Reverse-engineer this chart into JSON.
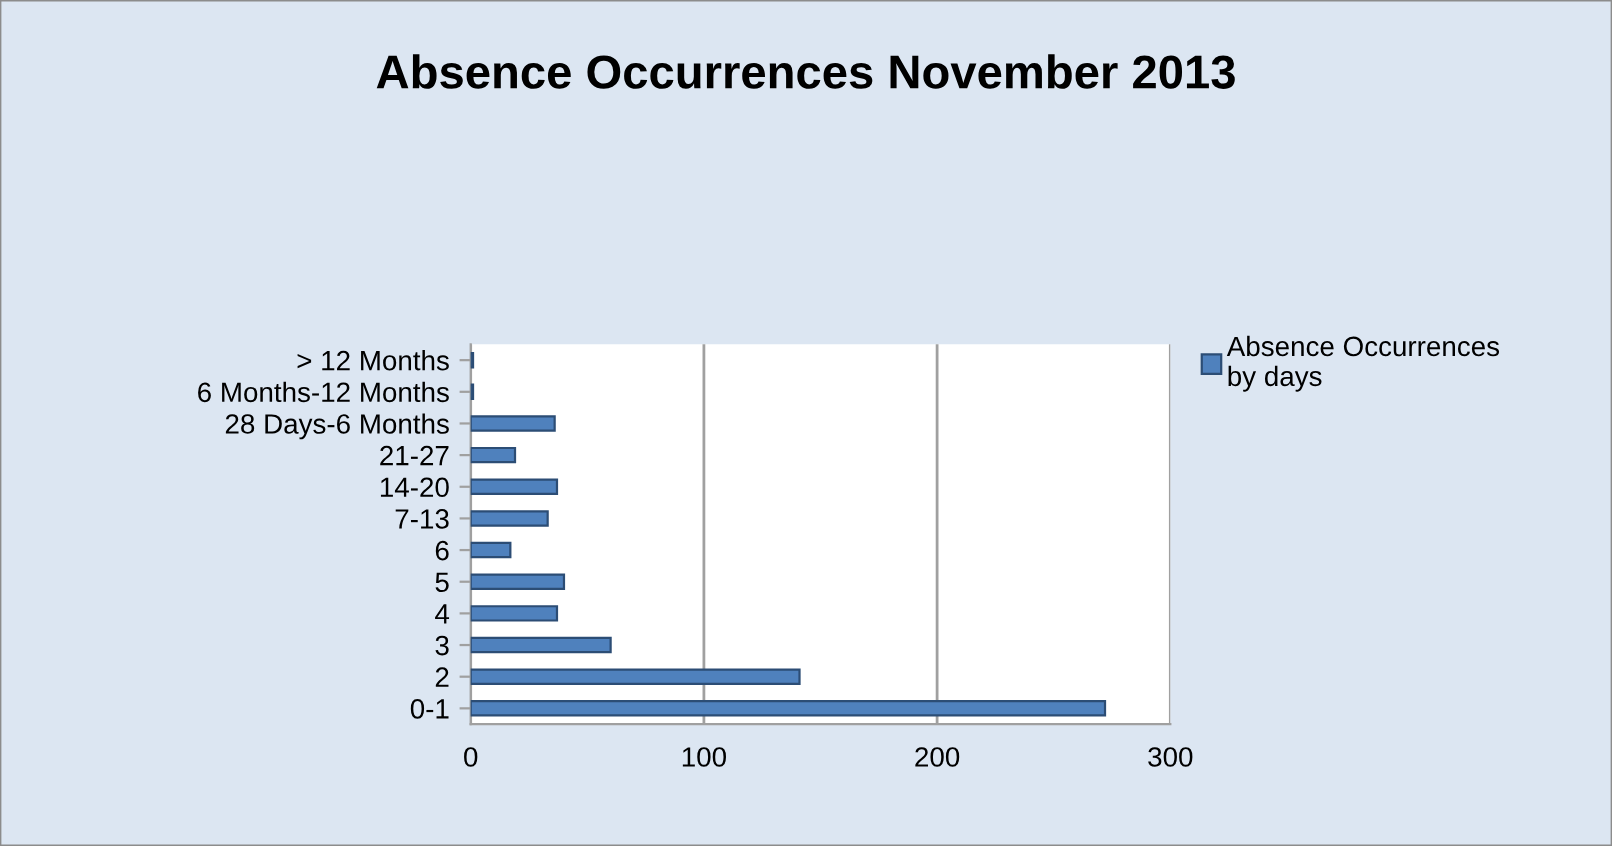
{
  "chart_data": {
    "type": "bar",
    "orientation": "horizontal",
    "title": "Absence Occurrences November 2013",
    "categories": [
      "> 12 Months",
      "6 Months-12 Months",
      "28 Days-6 Months",
      "21-27",
      "14-20",
      "7-13",
      "6",
      "5",
      "4",
      "3",
      "2",
      "0-1"
    ],
    "series": [
      {
        "name": "Absence Occurrences by days",
        "color": "#4f81bd",
        "values": [
          1,
          1,
          36,
          19,
          37,
          33,
          17,
          40,
          37,
          60,
          141,
          272
        ]
      }
    ],
    "xlim": [
      0,
      300
    ],
    "xticks": [
      0,
      100,
      200,
      300
    ],
    "grid": "x",
    "legend": "right"
  }
}
